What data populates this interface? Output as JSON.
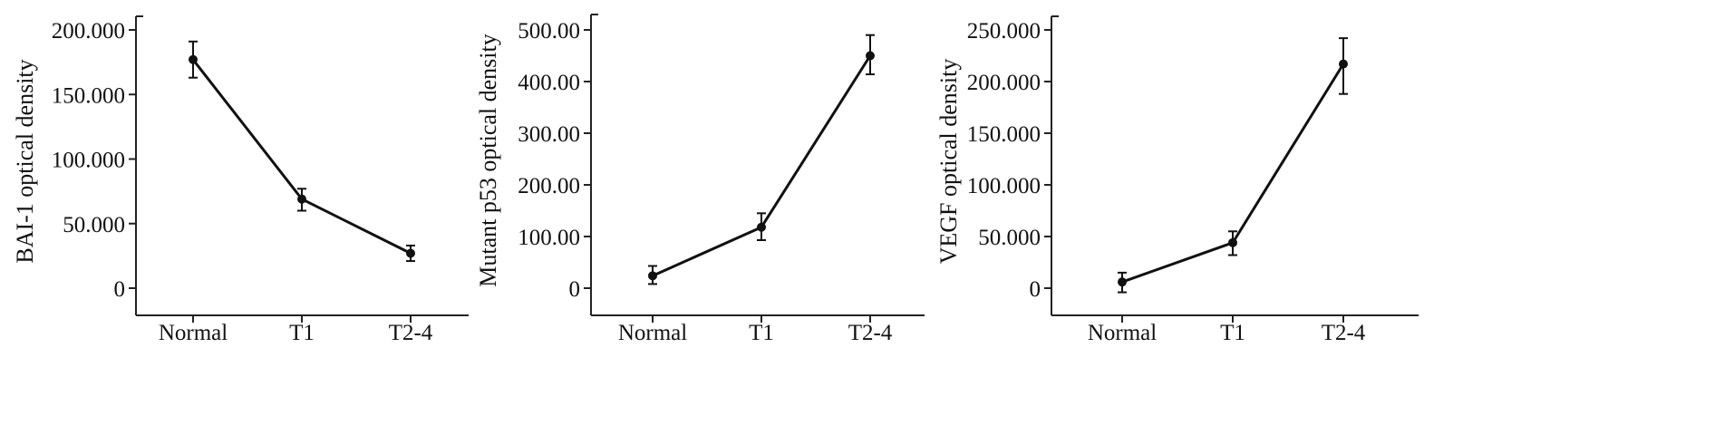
{
  "chart_data": [
    {
      "type": "line",
      "categories": [
        "Normal",
        "T1",
        "T2-4"
      ],
      "series": [
        {
          "values": [
            177,
            69,
            27
          ],
          "error_low": [
            163,
            60,
            21
          ],
          "error_high": [
            191,
            77,
            33
          ]
        }
      ],
      "ylabel": "BAI-1 optical density",
      "ylim": [
        0,
        200
      ],
      "yticks": [
        0,
        50,
        100,
        150,
        200
      ],
      "ytick_labels": [
        "0",
        "50.000",
        "100.000",
        "150.000",
        "200.000"
      ],
      "grid": false
    },
    {
      "type": "line",
      "categories": [
        "Normal",
        "T1",
        "T2-4"
      ],
      "series": [
        {
          "values": [
            24,
            118,
            450
          ],
          "error_low": [
            8,
            93,
            414
          ],
          "error_high": [
            43,
            145,
            490
          ]
        }
      ],
      "ylabel": "Mutant p53 optical density",
      "ylim": [
        0,
        500
      ],
      "yticks": [
        0,
        100,
        200,
        300,
        400,
        500
      ],
      "ytick_labels": [
        "0",
        "100.00",
        "200.00",
        "300.00",
        "400.00",
        "500.00"
      ],
      "grid": false
    },
    {
      "type": "line",
      "categories": [
        "Normal",
        "T1",
        "T2-4"
      ],
      "series": [
        {
          "values": [
            6,
            44,
            217
          ],
          "error_low": [
            -4,
            32,
            188
          ],
          "error_high": [
            15,
            55,
            242
          ]
        }
      ],
      "ylabel": "VEGF optical density",
      "ylim": [
        0,
        250
      ],
      "yticks": [
        0,
        50,
        100,
        150,
        200,
        250
      ],
      "ytick_labels": [
        "0",
        "50.000",
        "100.000",
        "150.000",
        "200.000",
        "250.000"
      ],
      "grid": false
    }
  ]
}
